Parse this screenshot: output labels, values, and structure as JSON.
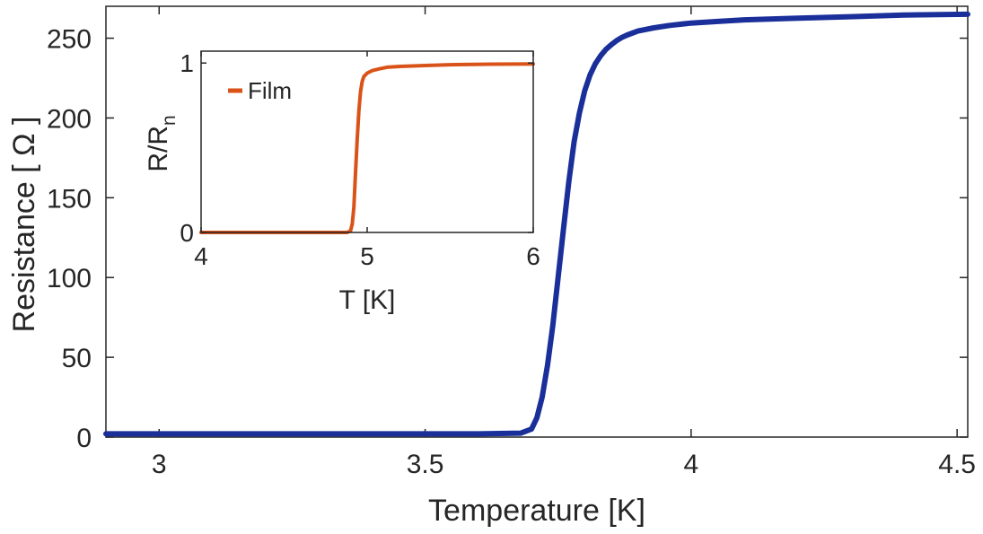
{
  "chart_data": [
    {
      "type": "line",
      "title": "",
      "xlabel": "Temperature [K]",
      "ylabel": "Resistance [ Ω ]",
      "xlim": [
        2.9,
        4.52
      ],
      "ylim": [
        0,
        270
      ],
      "xticks": [
        "3",
        "3.5",
        "4",
        "4.5"
      ],
      "xtick_values": [
        3,
        3.5,
        4,
        4.5
      ],
      "yticks": [
        "0",
        "50",
        "100",
        "150",
        "200",
        "250"
      ],
      "ytick_values": [
        0,
        50,
        100,
        150,
        200,
        250
      ],
      "grid": false,
      "series": [
        {
          "color": "#1a2f99",
          "x": [
            2.9,
            3.0,
            3.2,
            3.4,
            3.6,
            3.68,
            3.7,
            3.71,
            3.72,
            3.73,
            3.74,
            3.75,
            3.76,
            3.77,
            3.78,
            3.79,
            3.8,
            3.81,
            3.82,
            3.83,
            3.84,
            3.85,
            3.86,
            3.87,
            3.88,
            3.9,
            3.93,
            3.96,
            4.0,
            4.05,
            4.1,
            4.2,
            4.3,
            4.4,
            4.52
          ],
          "y": [
            2,
            2,
            2,
            2,
            2,
            2.5,
            5,
            12,
            25,
            45,
            70,
            100,
            130,
            160,
            185,
            203,
            217,
            227,
            234,
            239,
            243,
            246,
            248.5,
            250.5,
            252,
            254.5,
            256.5,
            258,
            259.5,
            260.5,
            261.5,
            262.5,
            263.5,
            264.5,
            265
          ]
        }
      ]
    },
    {
      "type": "line",
      "title": "",
      "xlabel": "T [K]",
      "ylabel": "R/R",
      "ylabel_subscript": "n",
      "xlim": [
        4,
        6
      ],
      "ylim": [
        0,
        1.07
      ],
      "xticks": [
        "4",
        "5",
        "6"
      ],
      "xtick_values": [
        4,
        5,
        6
      ],
      "yticks": [
        "0",
        "1"
      ],
      "ytick_values": [
        0,
        1
      ],
      "legend": {
        "position": "top-left",
        "entries": [
          "Film"
        ]
      },
      "series": [
        {
          "name": "Film",
          "color": "#d95319",
          "x": [
            4.0,
            4.5,
            4.88,
            4.9,
            4.91,
            4.92,
            4.93,
            4.94,
            4.95,
            4.96,
            4.97,
            4.98,
            5.0,
            5.03,
            5.07,
            5.12,
            5.2,
            5.35,
            5.5,
            5.75,
            6.0
          ],
          "y": [
            0,
            0,
            0,
            0.01,
            0.05,
            0.15,
            0.35,
            0.55,
            0.72,
            0.83,
            0.89,
            0.92,
            0.94,
            0.955,
            0.965,
            0.975,
            0.98,
            0.985,
            0.99,
            0.993,
            0.995
          ]
        }
      ]
    }
  ]
}
